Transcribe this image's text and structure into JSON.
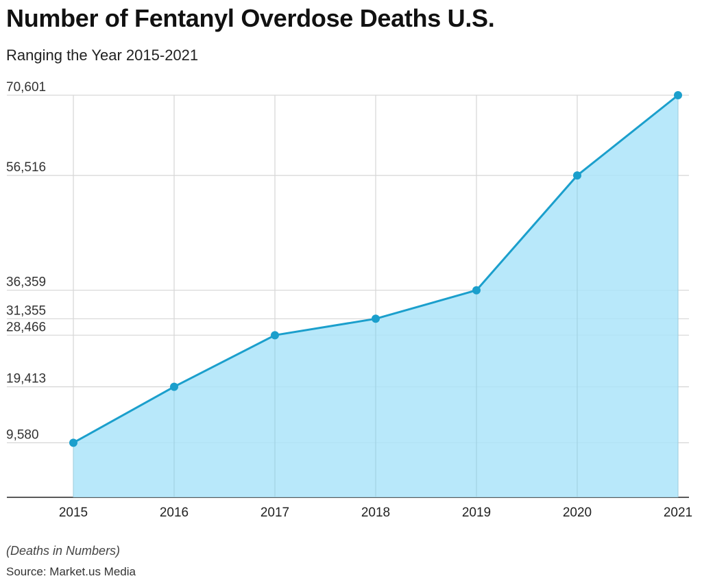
{
  "header": {
    "title": "Number of Fentanyl Overdose Deaths U.S.",
    "subtitle": "Ranging the Year 2015-2021"
  },
  "footer": {
    "note": "(Deaths in Numbers)",
    "source": "Source: Market.us Media"
  },
  "colors": {
    "line": "#1b9fcc",
    "area": "#ace4f9",
    "grid": "#d6d6d6",
    "axis": "#222222"
  },
  "chart_data": {
    "type": "area",
    "categories": [
      "2015",
      "2016",
      "2017",
      "2018",
      "2019",
      "2020",
      "2021"
    ],
    "values": [
      9580,
      19413,
      28466,
      31355,
      36359,
      56516,
      70601
    ],
    "ytick_labels": [
      "9,580",
      "19,413",
      "28,466",
      "31,355",
      "36,359",
      "56,516",
      "70,601"
    ],
    "ylim": [
      0,
      70601
    ],
    "grid": true,
    "markers": true,
    "legend": "none"
  }
}
